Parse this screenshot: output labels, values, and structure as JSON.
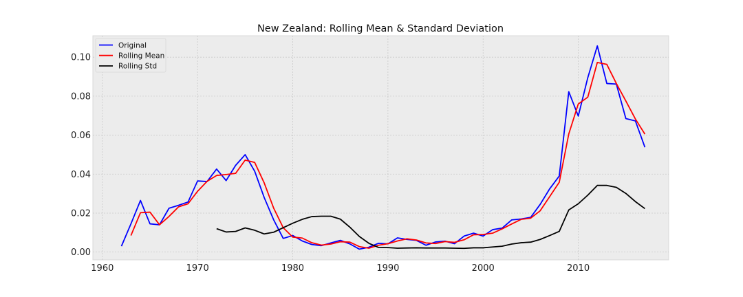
{
  "chart_data": {
    "type": "line",
    "title": "New Zealand: Rolling Mean & Standard Deviation",
    "xlim": [
      1959,
      2019.5
    ],
    "ylim": [
      -0.004,
      0.111
    ],
    "grid": true,
    "legend_position": "top-left",
    "x_ticks": [
      1960,
      1970,
      1980,
      1990,
      2000,
      2010
    ],
    "x_tick_labels": [
      "1960",
      "1970",
      "1980",
      "1990",
      "2000",
      "2010"
    ],
    "y_ticks": [
      0.0,
      0.02,
      0.04,
      0.06,
      0.08,
      0.1
    ],
    "y_tick_labels": [
      "0.00",
      "0.02",
      "0.04",
      "0.06",
      "0.08",
      "0.10"
    ],
    "series": [
      {
        "name": "Original",
        "color": "#0000ff",
        "x": [
          1962,
          1963,
          1964,
          1965,
          1966,
          1967,
          1968,
          1969,
          1970,
          1971,
          1972,
          1973,
          1974,
          1975,
          1976,
          1977,
          1978,
          1979,
          1980,
          1981,
          1982,
          1983,
          1984,
          1985,
          1986,
          1987,
          1988,
          1989,
          1990,
          1991,
          1992,
          1993,
          1994,
          1995,
          1996,
          1997,
          1998,
          1999,
          2000,
          2001,
          2002,
          2003,
          2004,
          2005,
          2006,
          2007,
          2008,
          2009,
          2010,
          2011,
          2012,
          2013,
          2014,
          2015,
          2016,
          2017
        ],
        "values": [
          0.003,
          0.0145,
          0.0265,
          0.0145,
          0.014,
          0.0225,
          0.024,
          0.0257,
          0.0365,
          0.0362,
          0.0426,
          0.0367,
          0.0445,
          0.05,
          0.0415,
          0.028,
          0.0165,
          0.007,
          0.0085,
          0.0057,
          0.0039,
          0.0033,
          0.0047,
          0.006,
          0.0042,
          0.0015,
          0.0025,
          0.0045,
          0.0042,
          0.0073,
          0.0065,
          0.006,
          0.0035,
          0.0052,
          0.0056,
          0.0043,
          0.0082,
          0.0097,
          0.0082,
          0.0115,
          0.0123,
          0.0165,
          0.017,
          0.0178,
          0.0245,
          0.0325,
          0.039,
          0.0823,
          0.0698,
          0.0895,
          0.1058,
          0.0865,
          0.0862,
          0.0685,
          0.0673,
          0.0538
        ]
      },
      {
        "name": "Rolling Mean",
        "color": "#ff0000",
        "x": [
          1963,
          1964,
          1965,
          1966,
          1967,
          1968,
          1969,
          1970,
          1971,
          1972,
          1973,
          1974,
          1975,
          1976,
          1977,
          1978,
          1979,
          1980,
          1981,
          1982,
          1983,
          1984,
          1985,
          1986,
          1987,
          1988,
          1989,
          1990,
          1991,
          1992,
          1993,
          1994,
          1995,
          1996,
          1997,
          1998,
          1999,
          2000,
          2001,
          2002,
          2003,
          2004,
          2005,
          2006,
          2007,
          2008,
          2009,
          2010,
          2011,
          2012,
          2013,
          2014,
          2015,
          2016,
          2017
        ],
        "values": [
          0.0085,
          0.0202,
          0.0205,
          0.014,
          0.0183,
          0.0232,
          0.0248,
          0.0312,
          0.0363,
          0.0393,
          0.0398,
          0.0404,
          0.0472,
          0.046,
          0.0355,
          0.0225,
          0.0125,
          0.0077,
          0.0072,
          0.0048,
          0.0036,
          0.0041,
          0.0053,
          0.0051,
          0.0028,
          0.002,
          0.0035,
          0.0043,
          0.0057,
          0.0068,
          0.0062,
          0.0047,
          0.0044,
          0.0054,
          0.005,
          0.0063,
          0.0089,
          0.009,
          0.0097,
          0.0119,
          0.0144,
          0.0168,
          0.0174,
          0.0212,
          0.0285,
          0.0358,
          0.0606,
          0.076,
          0.0795,
          0.0973,
          0.0963,
          0.0865,
          0.0775,
          0.0683,
          0.0605
        ]
      },
      {
        "name": "Rolling Std",
        "color": "#000000",
        "x": [
          1972,
          1973,
          1974,
          1975,
          1976,
          1977,
          1978,
          1979,
          1980,
          1981,
          1982,
          1983,
          1984,
          1985,
          1986,
          1987,
          1988,
          1989,
          1990,
          1991,
          1992,
          1993,
          1994,
          1995,
          1996,
          1997,
          1998,
          1999,
          2000,
          2001,
          2002,
          2003,
          2004,
          2005,
          2006,
          2007,
          2008,
          2009,
          2010,
          2011,
          2012,
          2013,
          2014,
          2015,
          2016,
          2017
        ],
        "values": [
          0.012,
          0.0103,
          0.0106,
          0.0124,
          0.0112,
          0.0093,
          0.0102,
          0.0125,
          0.0148,
          0.0168,
          0.0182,
          0.0184,
          0.0184,
          0.0169,
          0.0128,
          0.008,
          0.0045,
          0.0024,
          0.0023,
          0.002,
          0.0021,
          0.0022,
          0.0021,
          0.0021,
          0.0021,
          0.002,
          0.0019,
          0.0022,
          0.0022,
          0.0026,
          0.003,
          0.0041,
          0.0048,
          0.0051,
          0.0065,
          0.0085,
          0.0106,
          0.0216,
          0.0248,
          0.0292,
          0.0342,
          0.0342,
          0.0332,
          0.0301,
          0.0259,
          0.0223
        ]
      }
    ]
  }
}
